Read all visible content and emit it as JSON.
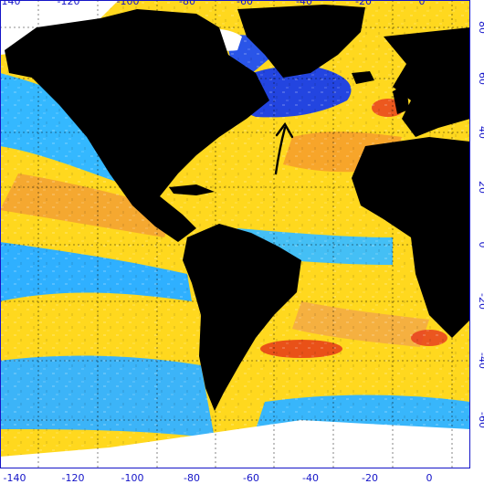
{
  "map": {
    "colors": {
      "land": "#000000",
      "ice": "#ffffff",
      "axis": "#1414c8",
      "warm_orange": "#f5a623",
      "warm_yellow": "#ffe21a",
      "cool_cyan": "#2fb8ff",
      "cool_blue": "#1e46e6",
      "hot_red": "#e83018"
    },
    "lon_ticks": [
      "-140",
      "-120",
      "-100",
      "-80",
      "-60",
      "-40",
      "-20",
      "0"
    ],
    "lat_ticks": [
      "80",
      "60",
      "40",
      "20",
      "0",
      "-20",
      "-40",
      "-60"
    ],
    "annotation": "arrow pointing north toward the western North Atlantic (Gulf Stream region)"
  }
}
